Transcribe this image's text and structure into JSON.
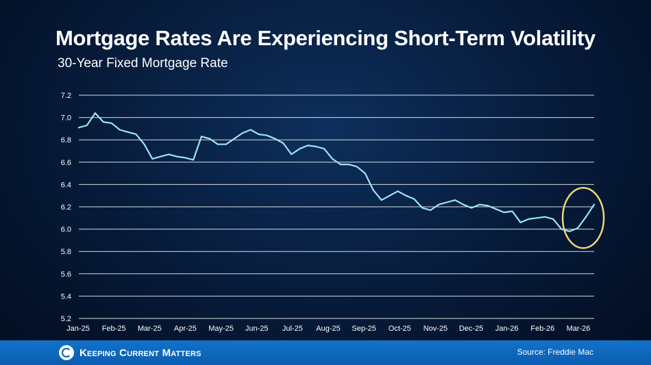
{
  "title": "Mortgage Rates Are Experiencing Short-Term Volatility",
  "subtitle": "30-Year Fixed Mortgage Rate",
  "source": "Source: Freddie Mac",
  "brand": "Keeping Current Matters",
  "colors": {
    "line": "#9fe6f2",
    "highlight": "#f2d675",
    "grid": "#ffffff",
    "footer": "#0a5db0"
  },
  "chart_data": {
    "type": "line",
    "title": "Mortgage Rates Are Experiencing Short-Term Volatility",
    "subtitle": "30-Year Fixed Mortgage Rate",
    "xlabel": "",
    "ylabel": "",
    "ylim": [
      5.2,
      7.2
    ],
    "yticks": [
      5.2,
      5.4,
      5.6,
      5.8,
      6.0,
      6.2,
      6.4,
      6.6,
      6.8,
      7.0,
      7.2
    ],
    "ytick_labels": [
      "5.2",
      "5.4",
      "5.6",
      "5.8",
      "6.0",
      "6.2",
      "6.4",
      "6.6",
      "6.8",
      "7.0",
      "7.2"
    ],
    "month_labels": [
      "Jan-25",
      "Feb-25",
      "Mar-25",
      "Apr-25",
      "May-25",
      "Jun-25",
      "Jul-25",
      "Aug-25",
      "Sep-25",
      "Oct-25",
      "Nov-25",
      "Dec-25",
      "Jan-26",
      "Feb-26",
      "Mar-26"
    ],
    "grid": true,
    "annotation": "circle highlighting latest rise",
    "series": [
      {
        "name": "30-Year Fixed Mortgage Rate",
        "values": [
          6.91,
          6.93,
          7.04,
          6.96,
          6.95,
          6.89,
          6.87,
          6.85,
          6.76,
          6.63,
          6.65,
          6.67,
          6.65,
          6.64,
          6.62,
          6.83,
          6.81,
          6.76,
          6.76,
          6.81,
          6.86,
          6.89,
          6.85,
          6.84,
          6.81,
          6.77,
          6.67,
          6.72,
          6.75,
          6.74,
          6.72,
          6.63,
          6.58,
          6.58,
          6.56,
          6.5,
          6.35,
          6.26,
          6.3,
          6.34,
          6.3,
          6.27,
          6.19,
          6.17,
          6.22,
          6.24,
          6.26,
          6.22,
          6.19,
          6.22,
          6.21,
          6.18,
          6.15,
          6.16,
          6.06,
          6.09,
          6.1,
          6.11,
          6.09,
          6.0,
          5.98,
          6.01,
          6.11,
          6.22
        ]
      }
    ]
  }
}
